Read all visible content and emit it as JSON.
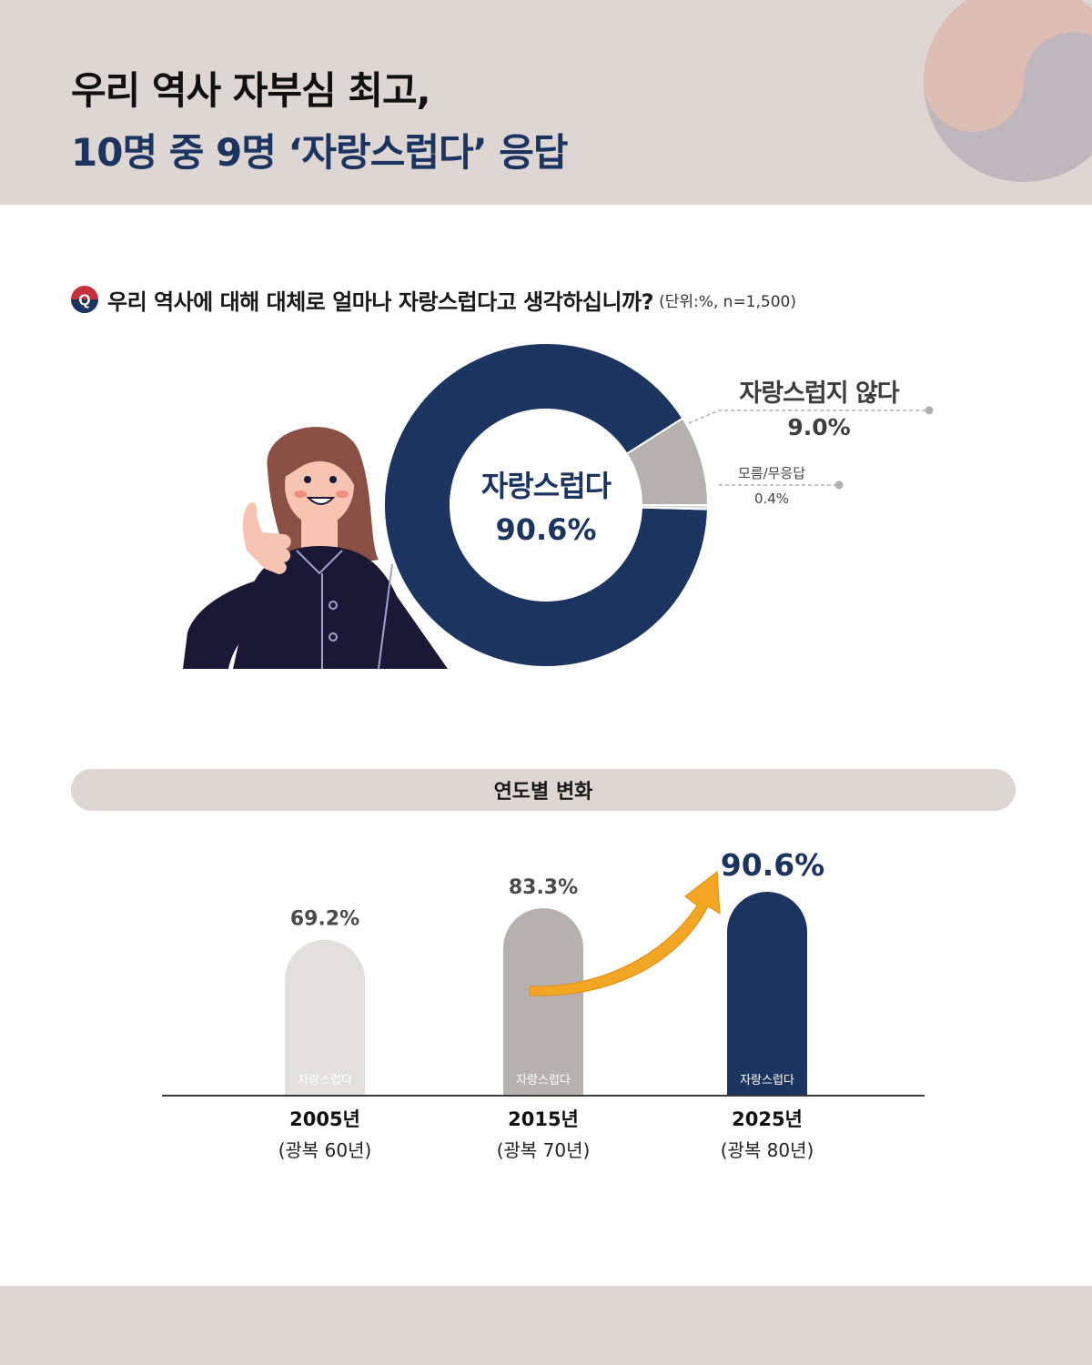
{
  "header": {
    "title_line1": "우리 역사 자부심 최고,",
    "title_line2": "10명 중 9명 ‘자랑스럽다’ 응답"
  },
  "question": {
    "badge": "Q",
    "text": "우리 역사에 대해 대체로 얼마나 자랑스럽다고 생각하십니까?",
    "unit_note": "(단위:%, n=1,500)"
  },
  "section": {
    "yearly_title": "연도별 변화"
  },
  "colors": {
    "navy": "#1c3560",
    "gray": "#b6b0ae",
    "light_gray": "#e2e1e0",
    "beige": "#ded6d3",
    "arrow": "#f2a623"
  },
  "chart_data": [
    {
      "type": "pie",
      "variant": "donut",
      "slices": [
        {
          "label": "자랑스럽다",
          "value": 90.6,
          "value_label": "90.6%",
          "color": "#1c3560"
        },
        {
          "label": "자랑스럽지 않다",
          "value": 9.0,
          "value_label": "9.0%",
          "color": "#b6b0ae"
        },
        {
          "label": "모름/무응답",
          "value": 0.4,
          "value_label": "0.4%",
          "color": "#dcdcdc"
        }
      ]
    },
    {
      "type": "bar",
      "categories": [
        "2005년",
        "2015년",
        "2025년"
      ],
      "category_sublabels": [
        "(광복 60년)",
        "(광복 70년)",
        "(광복 80년)"
      ],
      "series": [
        {
          "name": "자랑스럽다",
          "values": [
            69.2,
            83.3,
            90.6
          ],
          "value_labels": [
            "69.2%",
            "83.3%",
            "90.6%"
          ],
          "colors": [
            "#e2e1e0",
            "#b6b0ae",
            "#1c3560"
          ]
        }
      ],
      "bar_labels": [
        "자랑스럽다",
        "자랑스럽다",
        "자랑스럽다"
      ]
    }
  ]
}
